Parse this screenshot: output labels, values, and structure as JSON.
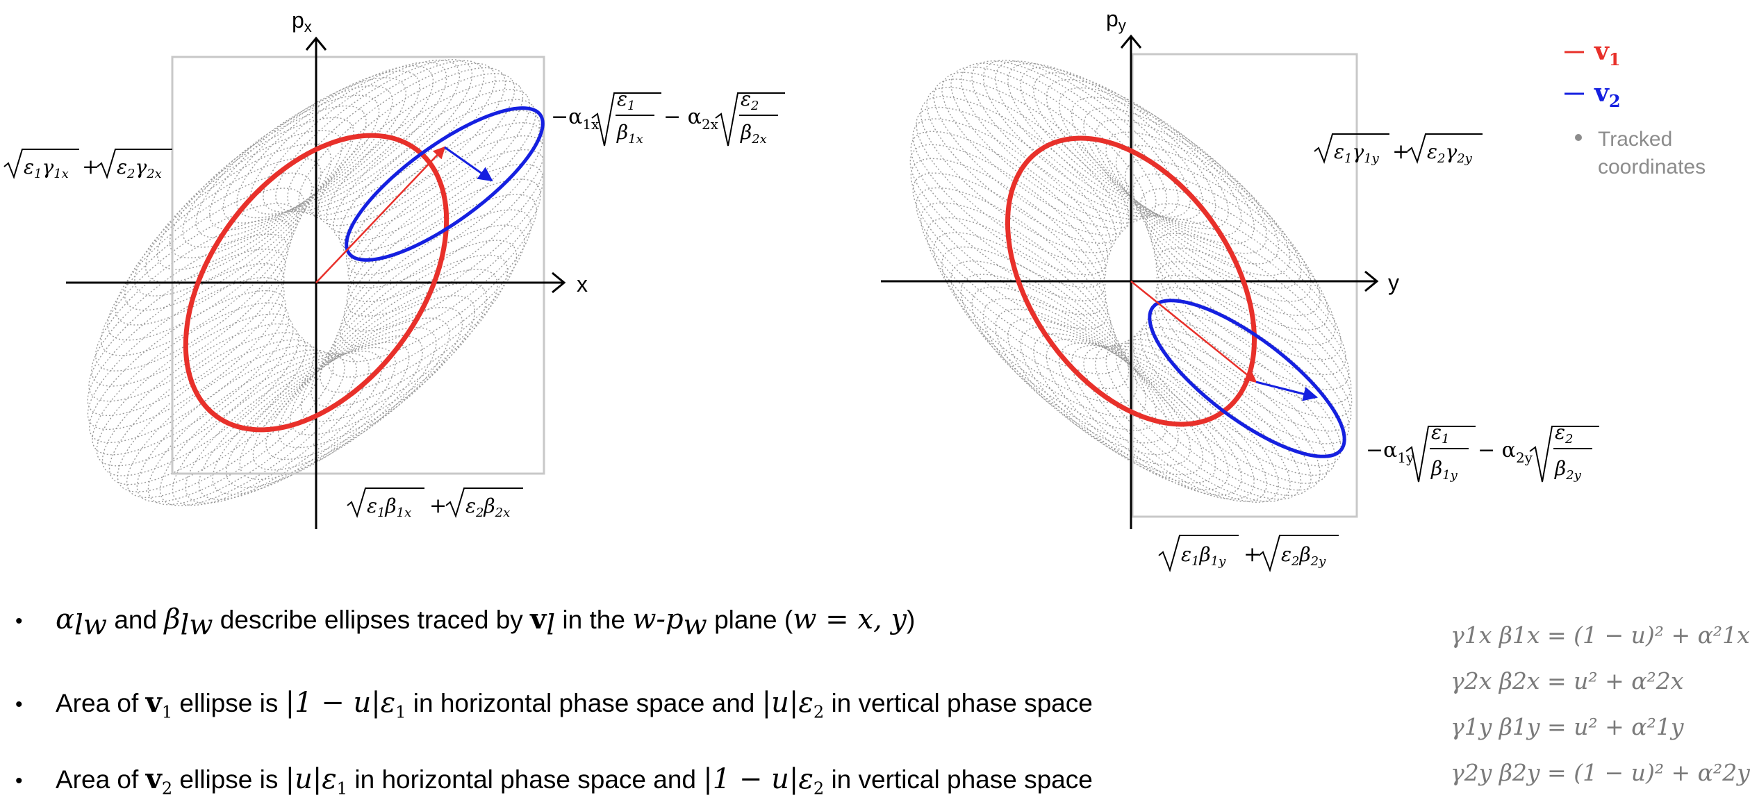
{
  "left_plot": {
    "x_axis_label": "x",
    "y_axis_label": "px",
    "y_axis_label_main": "p",
    "y_axis_label_sub": "x",
    "label_top_right": "−α1x√(ε1/β1x) − α2x√(ε2/β2x)",
    "label_left": "√(ε1γ1x) + √(ε2γ2x)",
    "label_bottom": "√(ε1β1x) + √(ε2β2x)"
  },
  "right_plot": {
    "x_axis_label": "y",
    "y_axis_label": "py",
    "y_axis_label_main": "p",
    "y_axis_label_sub": "y",
    "label_right_top": "√(ε1γ1y) + √(ε2γ2y)",
    "label_right_bottom": "−α1y√(ε1/β1y) − α2y√(ε2/β2y)",
    "label_bottom": "√(ε1β1y) + √(ε2β2y)"
  },
  "legend": {
    "v1_label": "v1",
    "v2_label": "v2",
    "tracked_line1": "Tracked",
    "tracked_line2": "coordinates",
    "v1_color": "#e8302a",
    "v2_color": "#1520e0",
    "tracked_color": "#8c8c8c"
  },
  "bullets": [
    {
      "prefix_math": "α",
      "prefix_sub": "lw",
      "and_text": " and ",
      "beta_math": "β",
      "beta_sub": "lw",
      "middle_text": " describe ellipses traced by ",
      "vec": "v",
      "vec_sub": "l",
      "in_text": " in the ",
      "plane_math": "w-p",
      "plane_sub": "w",
      "suffix_text": " plane (",
      "paren_math": "w = x, y",
      "close": ")"
    },
    {
      "start": "Area of ",
      "vec": "v",
      "vec_sub": "1",
      "t1": " ellipse is ",
      "m1": "|1 − u|ε",
      "m1_sub": "1",
      "t2": " in horizontal phase space and ",
      "m2": "|u|ε",
      "m2_sub": "2",
      "t3": " in vertical phase space"
    },
    {
      "start": "Area of ",
      "vec": "v",
      "vec_sub": "2",
      "t1": " ellipse is ",
      "m1": "|u|ε",
      "m1_sub": "1",
      "t2": " in horizontal phase space and ",
      "m2": "|1 − u|ε",
      "m2_sub": "2",
      "t3": " in vertical phase space"
    }
  ],
  "relations": [
    {
      "lhs": "γ1x β1x = (1 − u)² + α²1x"
    },
    {
      "lhs": "γ2x β2x = u² + α²2x"
    },
    {
      "lhs": "γ1y β1y = u² + α²1y"
    },
    {
      "lhs": "γ2y β2y = (1 − u)² + α²2y"
    }
  ]
}
